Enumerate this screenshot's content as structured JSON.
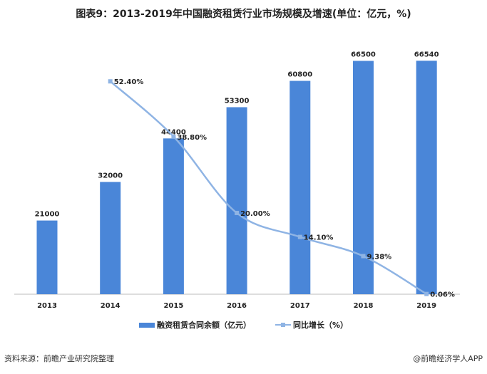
{
  "title": "图表9：2013-2019年中国融资租赁行业市场规模及增速(单位：亿元，%)",
  "chart_data": {
    "type": "bar+line",
    "categories": [
      "2013",
      "2014",
      "2015",
      "2016",
      "2017",
      "2018",
      "2019"
    ],
    "series": [
      {
        "name": "融资租赁合同余额（亿元）",
        "type": "bar",
        "values": [
          21000,
          32000,
          44400,
          53300,
          60800,
          66500,
          66540
        ],
        "labels": [
          "21000",
          "32000",
          "44400",
          "53300",
          "60800",
          "66500",
          "66540"
        ],
        "color": "#4a86d8"
      },
      {
        "name": "同比增长（%）",
        "type": "line",
        "values": [
          null,
          52.4,
          38.8,
          20.0,
          14.1,
          9.38,
          0.06
        ],
        "labels": [
          "",
          "52.40%",
          "38.80%",
          "20.00%",
          "14.10%",
          "9.38%",
          "0.06%"
        ],
        "color": "#8fb4e4"
      }
    ],
    "ylim_bar": [
      0,
      67000
    ],
    "ylim_line": [
      0,
      57
    ],
    "grid": false,
    "legend": "bottom"
  },
  "source": "资料来源：前瞻产业研究院整理",
  "credit": "@前瞻经济学人APP"
}
